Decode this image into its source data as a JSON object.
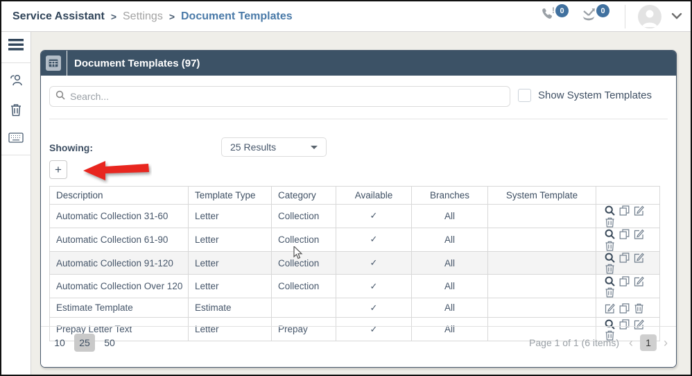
{
  "colors": {
    "panel_header": "#3C5266",
    "accent_blue": "#4A7AA8",
    "badge_blue": "#41719F",
    "arrow_red": "#E8261F",
    "check_blue": "#4A7DB5"
  },
  "breadcrumb": {
    "app": "Service Assistant",
    "separator": ">",
    "section": "Settings",
    "page": "Document Templates"
  },
  "topbar": {
    "phone_badge": "0",
    "calls_badge": "0"
  },
  "panel": {
    "title": "Document Templates (97)"
  },
  "search": {
    "placeholder": "Search..."
  },
  "system_templates_checkbox": {
    "label": "Show System Templates",
    "checked": false
  },
  "showing": {
    "label": "Showing:",
    "selected": "25 Results"
  },
  "add_button": {
    "label": "+"
  },
  "table": {
    "columns": [
      "Description",
      "Template Type",
      "Category",
      "Available",
      "Branches",
      "System Template",
      ""
    ],
    "check_glyph": "✓",
    "rows": [
      {
        "description": "Automatic Collection 31-60",
        "template_type": "Letter",
        "category": "Collection",
        "available": true,
        "branches": "All",
        "system_template": "",
        "highlighted": false,
        "actions": [
          "search",
          "copy",
          "edit",
          "delete"
        ]
      },
      {
        "description": "Automatic Collection 61-90",
        "template_type": "Letter",
        "category": "Collection",
        "available": true,
        "branches": "All",
        "system_template": "",
        "highlighted": false,
        "actions": [
          "search",
          "copy",
          "edit",
          "delete"
        ]
      },
      {
        "description": "Automatic Collection 91-120",
        "template_type": "Letter",
        "category": "Collection",
        "available": true,
        "branches": "All",
        "system_template": "",
        "highlighted": true,
        "actions": [
          "search",
          "copy",
          "edit",
          "delete"
        ]
      },
      {
        "description": "Automatic Collection Over 120",
        "template_type": "Letter",
        "category": "Collection",
        "available": true,
        "branches": "All",
        "system_template": "",
        "highlighted": false,
        "actions": [
          "search",
          "copy",
          "edit",
          "delete"
        ]
      },
      {
        "description": "Estimate Template",
        "template_type": "Estimate",
        "category": "",
        "available": true,
        "branches": "All",
        "system_template": "",
        "highlighted": false,
        "actions": [
          "edit",
          "copy",
          "delete"
        ]
      },
      {
        "description": "Prepay Letter Text",
        "template_type": "Letter",
        "category": "Prepay",
        "available": true,
        "branches": "All",
        "system_template": "",
        "highlighted": false,
        "actions": [
          "search",
          "copy",
          "edit",
          "delete"
        ]
      }
    ]
  },
  "footer": {
    "page_sizes": [
      {
        "label": "10",
        "active": false
      },
      {
        "label": "25",
        "active": true
      },
      {
        "label": "50",
        "active": false
      }
    ],
    "status": "Page 1 of 1 (6 items)",
    "prev_glyph": "‹",
    "next_glyph": "›",
    "current_page": "1"
  }
}
